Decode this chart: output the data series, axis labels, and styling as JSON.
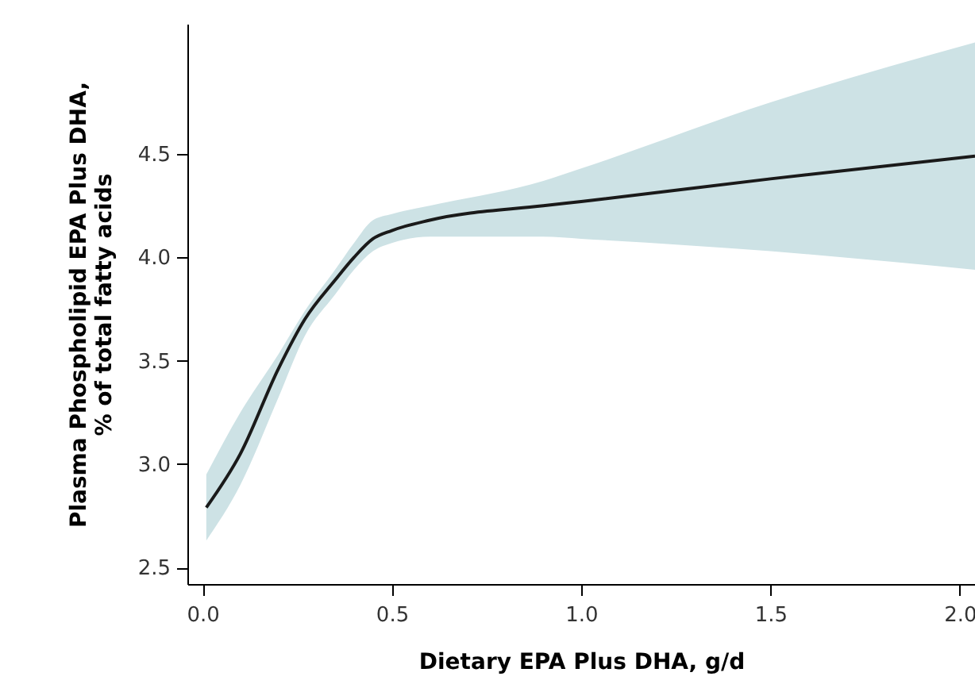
{
  "chart_data": {
    "type": "line",
    "xlabel": "Dietary EPA Plus DHA, g/d",
    "ylabel": "Plasma Phospholipid EPA Plus DHA, % of total fatty acids",
    "x": [
      0.01,
      0.1,
      0.2,
      0.27,
      0.35,
      0.4,
      0.45,
      0.5,
      0.6,
      0.9,
      1.0,
      1.5,
      2.04
    ],
    "series": [
      {
        "color": "#1a1a1a",
        "values": [
          2.79,
          3.05,
          3.46,
          3.7,
          3.89,
          4.0,
          4.09,
          4.13,
          4.18,
          4.25,
          4.27,
          4.38,
          4.49
        ],
        "lower": [
          2.63,
          2.9,
          3.32,
          3.62,
          3.82,
          3.94,
          4.03,
          4.07,
          4.1,
          4.1,
          4.09,
          4.03,
          3.94
        ],
        "upper": [
          2.95,
          3.25,
          3.53,
          3.74,
          3.94,
          4.07,
          4.18,
          4.21,
          4.25,
          4.37,
          4.43,
          4.75,
          5.04
        ]
      }
    ],
    "xlim": [
      -0.04,
      2.04
    ],
    "ylim": [
      2.42,
      5.13
    ],
    "xticks": [
      {
        "value": 0,
        "label": "0.0"
      },
      0.5,
      {
        "value": 1,
        "label": "1.0"
      },
      1.5,
      {
        "value": 2,
        "label": "2.0"
      }
    ],
    "yticks": [
      2.5,
      {
        "value": 3,
        "label": "3.0"
      },
      3.5,
      {
        "value": 4,
        "label": "4.0"
      },
      4.5
    ],
    "grid": false,
    "marker": "none",
    "line_style": "solid"
  }
}
